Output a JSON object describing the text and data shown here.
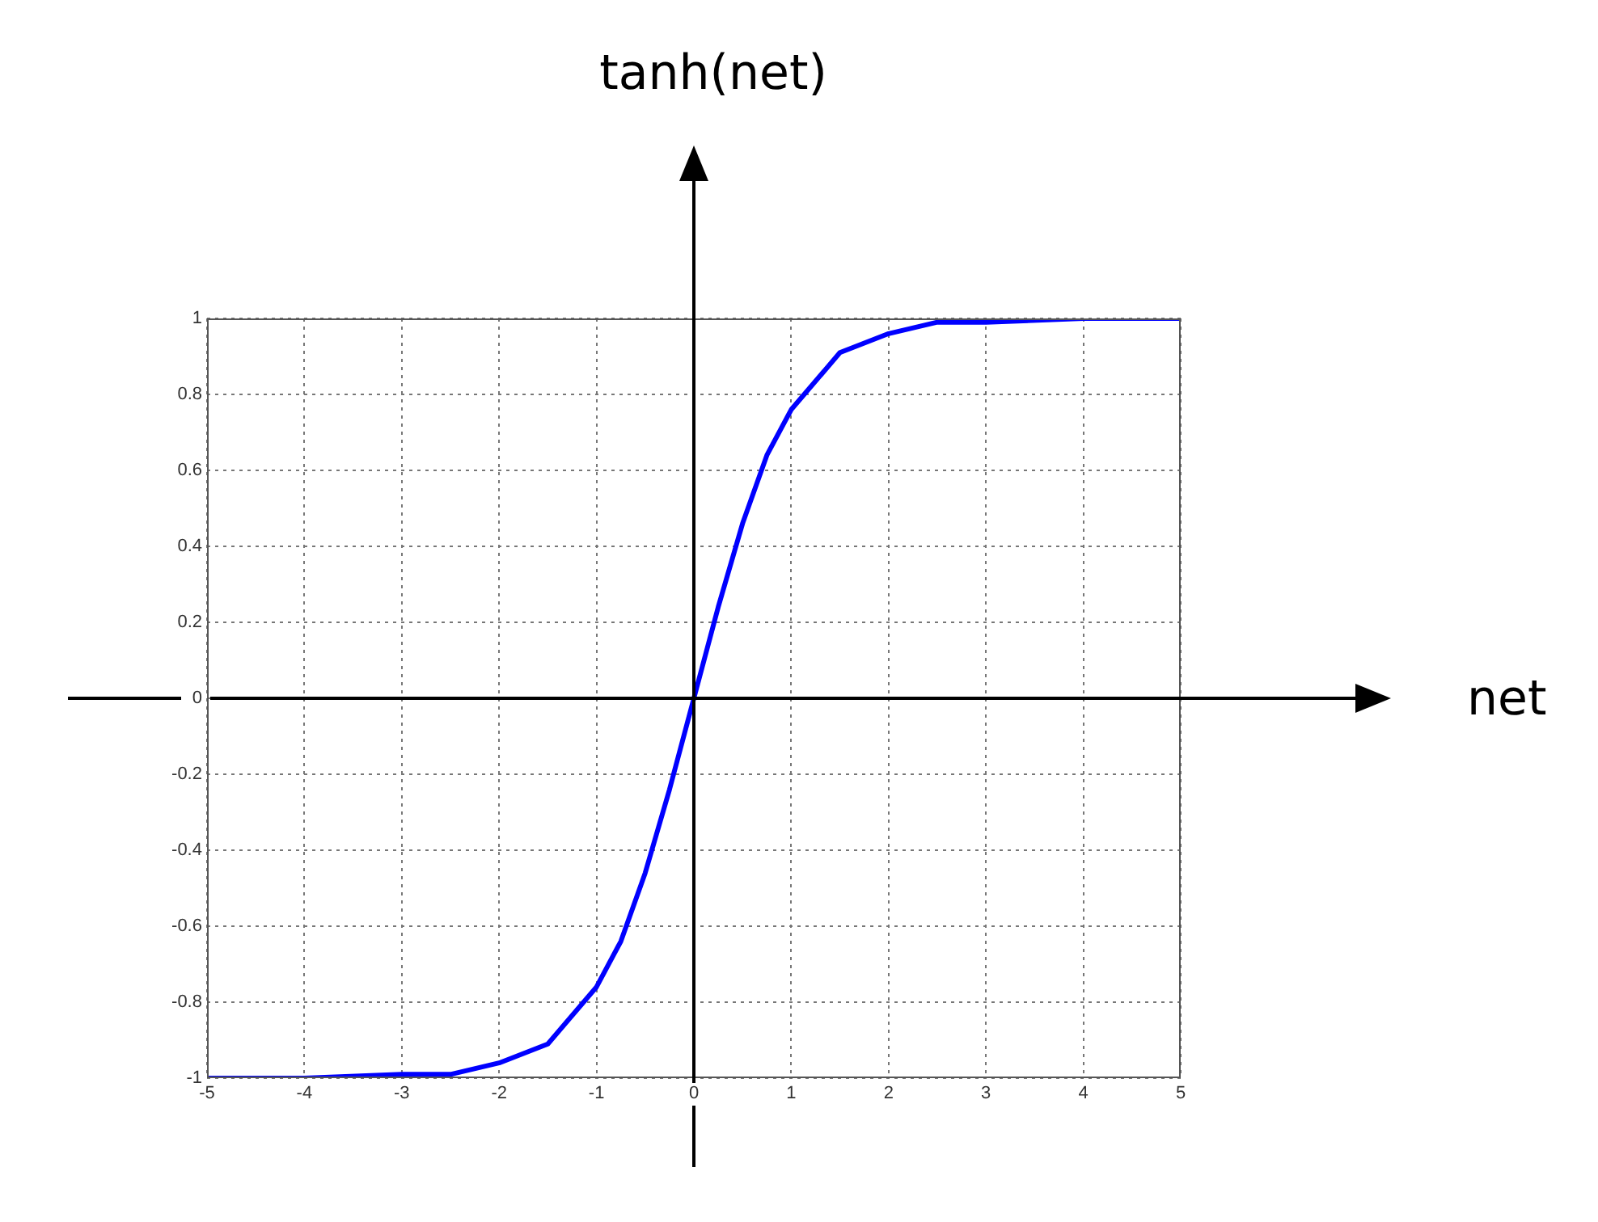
{
  "chart_data": {
    "type": "line",
    "ylabel": "tanh(net)",
    "annotations": [
      "net"
    ],
    "x": [
      -5,
      -4,
      -3,
      -2.5,
      -2,
      -1.5,
      -1,
      -0.75,
      -0.5,
      -0.25,
      0,
      0.25,
      0.5,
      0.75,
      1,
      1.5,
      2,
      2.5,
      3,
      4,
      5
    ],
    "series": [
      {
        "color": "#0000ff",
        "values": [
          -1,
          -1,
          -0.99,
          -0.99,
          -0.96,
          -0.91,
          -0.76,
          -0.64,
          -0.46,
          -0.24,
          0,
          0.24,
          0.46,
          0.64,
          0.76,
          0.91,
          0.96,
          0.99,
          0.99,
          1,
          1
        ]
      }
    ],
    "xlim": [
      -5,
      5
    ],
    "xticks": [
      -5,
      -4,
      -3,
      -2,
      -1,
      0,
      1,
      2,
      3,
      4,
      5
    ],
    "ylim": [
      -1,
      1
    ],
    "yticks": [
      -1,
      -0.8,
      -0.6,
      -0.4,
      -0.2,
      0,
      0.2,
      0.4,
      0.6,
      0.8,
      1
    ],
    "grid": true,
    "legend": false,
    "marker": "none",
    "line_style": "solid"
  }
}
